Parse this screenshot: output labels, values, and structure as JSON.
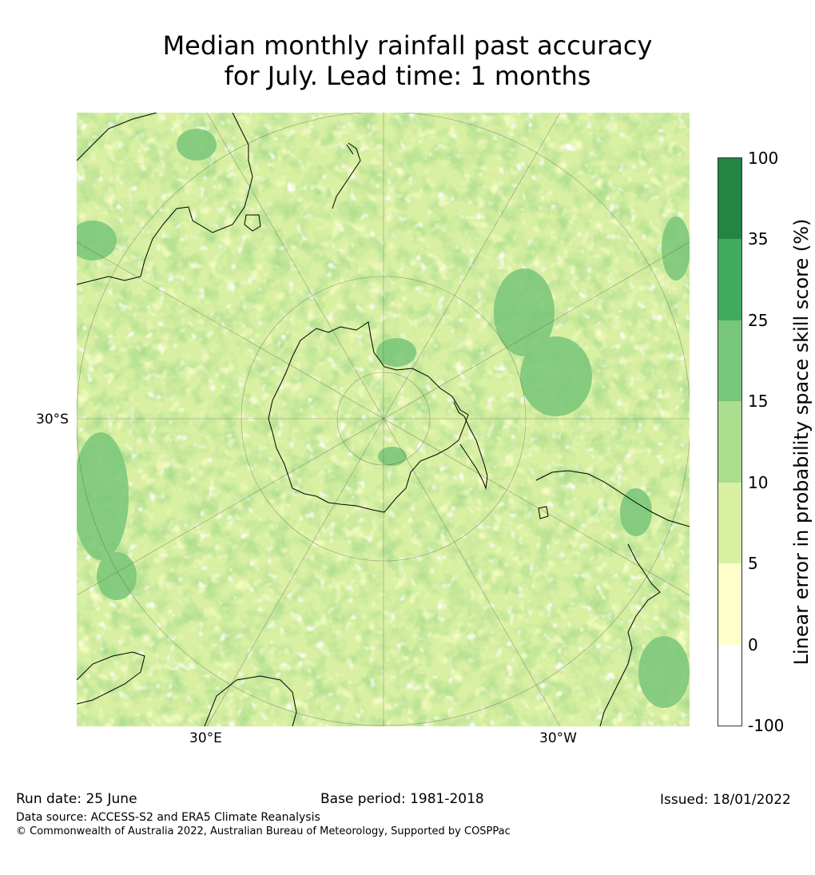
{
  "title": {
    "line1": "Median monthly rainfall past accuracy",
    "line2": "for July. Lead time: 1 months"
  },
  "map": {
    "projection": "south-polar-stereographic",
    "lat_labels": [
      "30°S"
    ],
    "lon_labels": [
      "30°E",
      "30°W"
    ]
  },
  "legend": {
    "label": "Linear error in probability space skill score (%)",
    "ticks": [
      "100",
      "35",
      "25",
      "15",
      "10",
      "5",
      "0",
      "-100"
    ],
    "bins": [
      {
        "range": "35 to 100",
        "color": "#238443"
      },
      {
        "range": "25 to 35",
        "color": "#41ab5d"
      },
      {
        "range": "15 to 25",
        "color": "#78c679"
      },
      {
        "range": "10 to 15",
        "color": "#addd8e"
      },
      {
        "range": "5 to 10",
        "color": "#d9f0a3"
      },
      {
        "range": "0 to 5",
        "color": "#ffffcc"
      },
      {
        "range": "-100 to 0",
        "color": "#ffffff"
      }
    ]
  },
  "footer": {
    "run_date": "Run date: 25 June",
    "base_period": "Base period: 1981-2018",
    "issued": "Issued: 18/01/2022",
    "data_source": "Data source: ACCESS-S2 and ERA5 Climate Reanalysis",
    "copyright": "© Commonwealth of Australia 2022, Australian Bureau of Meteorology, Supported by COSPPac"
  }
}
